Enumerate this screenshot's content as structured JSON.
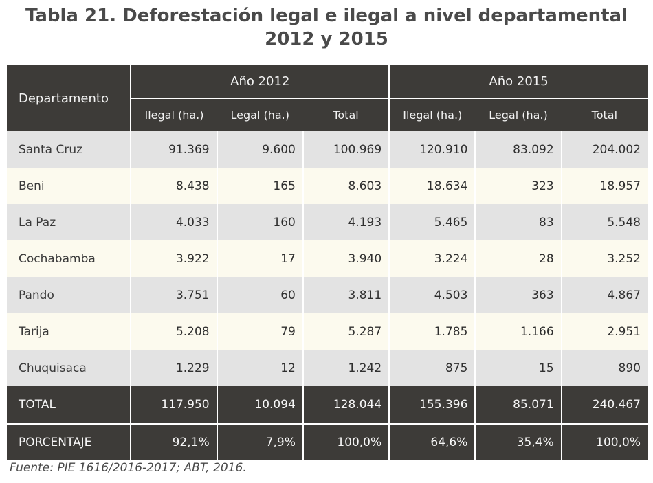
{
  "title": {
    "line1": "Tabla 21. Deforestación legal e ilegal a nivel departamental",
    "line2": "2012 y 2015"
  },
  "table": {
    "dept_header": "Departamento",
    "year_groups": [
      "Año 2012",
      "Año 2015"
    ],
    "sub_headers": [
      "Ilegal (ha.)",
      "Legal (ha.)",
      "Total",
      "Ilegal (ha.)",
      "Legal (ha.)",
      "Total"
    ],
    "rows": [
      {
        "name": "Santa Cruz",
        "values": [
          "91.369",
          "9.600",
          "100.969",
          "120.910",
          "83.092",
          "204.002"
        ]
      },
      {
        "name": "Beni",
        "values": [
          "8.438",
          "165",
          "8.603",
          "18.634",
          "323",
          "18.957"
        ]
      },
      {
        "name": "La Paz",
        "values": [
          "4.033",
          "160",
          "4.193",
          "5.465",
          "83",
          "5.548"
        ]
      },
      {
        "name": "Cochabamba",
        "values": [
          "3.922",
          "17",
          "3.940",
          "3.224",
          "28",
          "3.252"
        ]
      },
      {
        "name": "Pando",
        "values": [
          "3.751",
          "60",
          "3.811",
          "4.503",
          "363",
          "4.867"
        ]
      },
      {
        "name": "Tarija",
        "values": [
          "5.208",
          "79",
          "5.287",
          "1.785",
          "1.166",
          "2.951"
        ]
      },
      {
        "name": "Chuquisaca",
        "values": [
          "1.229",
          "12",
          "1.242",
          "875",
          "15",
          "890"
        ]
      }
    ],
    "total": {
      "name": "TOTAL",
      "values": [
        "117.950",
        "10.094",
        "128.044",
        "155.396",
        "85.071",
        "240.467"
      ]
    },
    "percent": {
      "name": "PORCENTAJE",
      "values": [
        "92,1%",
        "7,9%",
        "100,0%",
        "64,6%",
        "35,4%",
        "100,0%"
      ]
    }
  },
  "source": "Fuente: PIE 1616/2016-2017; ABT, 2016.",
  "colors": {
    "header_bg": "#3d3b38",
    "row_shade": "#e3e3e3",
    "row_light": "#fcfaee",
    "title_text": "#4a4a4a"
  }
}
